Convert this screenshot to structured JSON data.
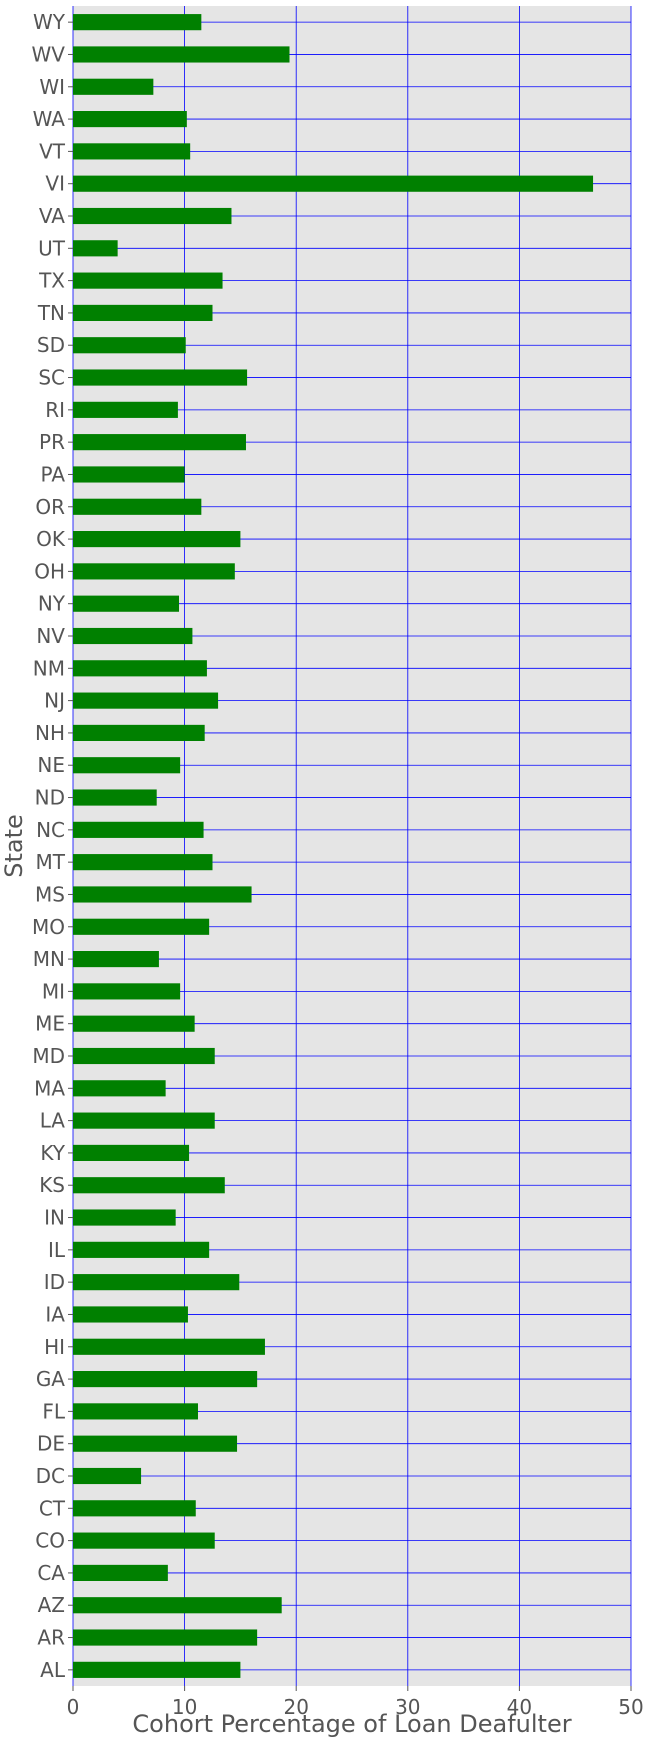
{
  "chart_data": {
    "type": "bar",
    "orientation": "horizontal",
    "xlabel": "Cohort Percentage of Loan Deafulter",
    "ylabel": "State",
    "xlim": [
      0,
      50
    ],
    "xticks": [
      0,
      10,
      20,
      30,
      40,
      50
    ],
    "grid": true,
    "colors": {
      "bar": "#008000",
      "grid": "#0000ff",
      "background": "#e5e5e5",
      "tick_text": "#555555"
    },
    "categories": [
      "AL",
      "AR",
      "AZ",
      "CA",
      "CO",
      "CT",
      "DC",
      "DE",
      "FL",
      "GA",
      "HI",
      "IA",
      "ID",
      "IL",
      "IN",
      "KS",
      "KY",
      "LA",
      "MA",
      "MD",
      "ME",
      "MI",
      "MN",
      "MO",
      "MS",
      "MT",
      "NC",
      "ND",
      "NE",
      "NH",
      "NJ",
      "NM",
      "NV",
      "NY",
      "OH",
      "OK",
      "OR",
      "PA",
      "PR",
      "RI",
      "SC",
      "SD",
      "TN",
      "TX",
      "UT",
      "VA",
      "VI",
      "VT",
      "WA",
      "WI",
      "WV",
      "WY"
    ],
    "values": [
      15.0,
      16.5,
      18.7,
      8.5,
      12.7,
      11.0,
      6.1,
      14.7,
      11.2,
      16.5,
      17.2,
      10.3,
      14.9,
      12.2,
      9.2,
      13.6,
      10.4,
      12.7,
      8.3,
      12.7,
      10.9,
      9.6,
      7.7,
      12.2,
      16.0,
      12.5,
      11.7,
      7.5,
      9.6,
      11.8,
      13.0,
      12.0,
      10.7,
      9.5,
      14.5,
      15.0,
      11.5,
      10.0,
      15.5,
      9.4,
      15.6,
      10.1,
      12.5,
      13.4,
      4.0,
      14.2,
      46.6,
      10.5,
      10.2,
      7.2,
      19.4,
      11.5
    ]
  }
}
